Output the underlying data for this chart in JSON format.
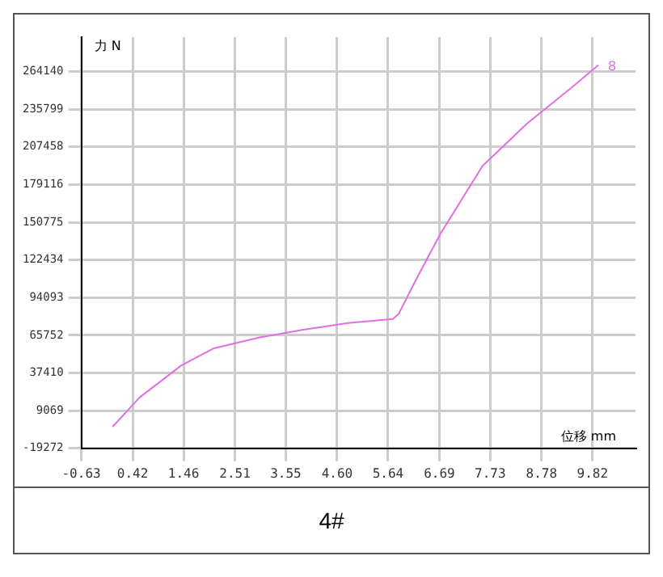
{
  "chart_data": {
    "type": "line",
    "xlabel": "位移 mm",
    "ylabel": "力 N",
    "annotations": [
      "4#"
    ],
    "x": [
      0.01,
      0.56,
      1.41,
      2.08,
      3.0,
      3.91,
      4.82,
      5.74,
      5.86,
      6.19,
      6.71,
      7.57,
      8.48,
      9.39,
      9.94
    ],
    "series": [
      {
        "name": "8",
        "color": "#e070e0",
        "values": [
          -3000,
          19000,
          43000,
          56000,
          64000,
          70000,
          75000,
          78000,
          82000,
          106000,
          142000,
          193000,
          225000,
          252000,
          269000
        ]
      }
    ],
    "xlim": [
      -0.63,
      10.7
    ],
    "ylim": [
      -19272,
      290000
    ],
    "xticks": [
      -0.63,
      0.42,
      1.46,
      2.51,
      3.55,
      {
        "value": 4.6,
        "label": "4.60"
      },
      5.64,
      6.69,
      7.73,
      8.78,
      9.82
    ],
    "yticks": [
      -19272,
      9069,
      37410,
      65752,
      94093,
      122434,
      150775,
      179116,
      207458,
      235799,
      264140
    ],
    "grid": true,
    "marker": "none",
    "line_style": "solid"
  }
}
